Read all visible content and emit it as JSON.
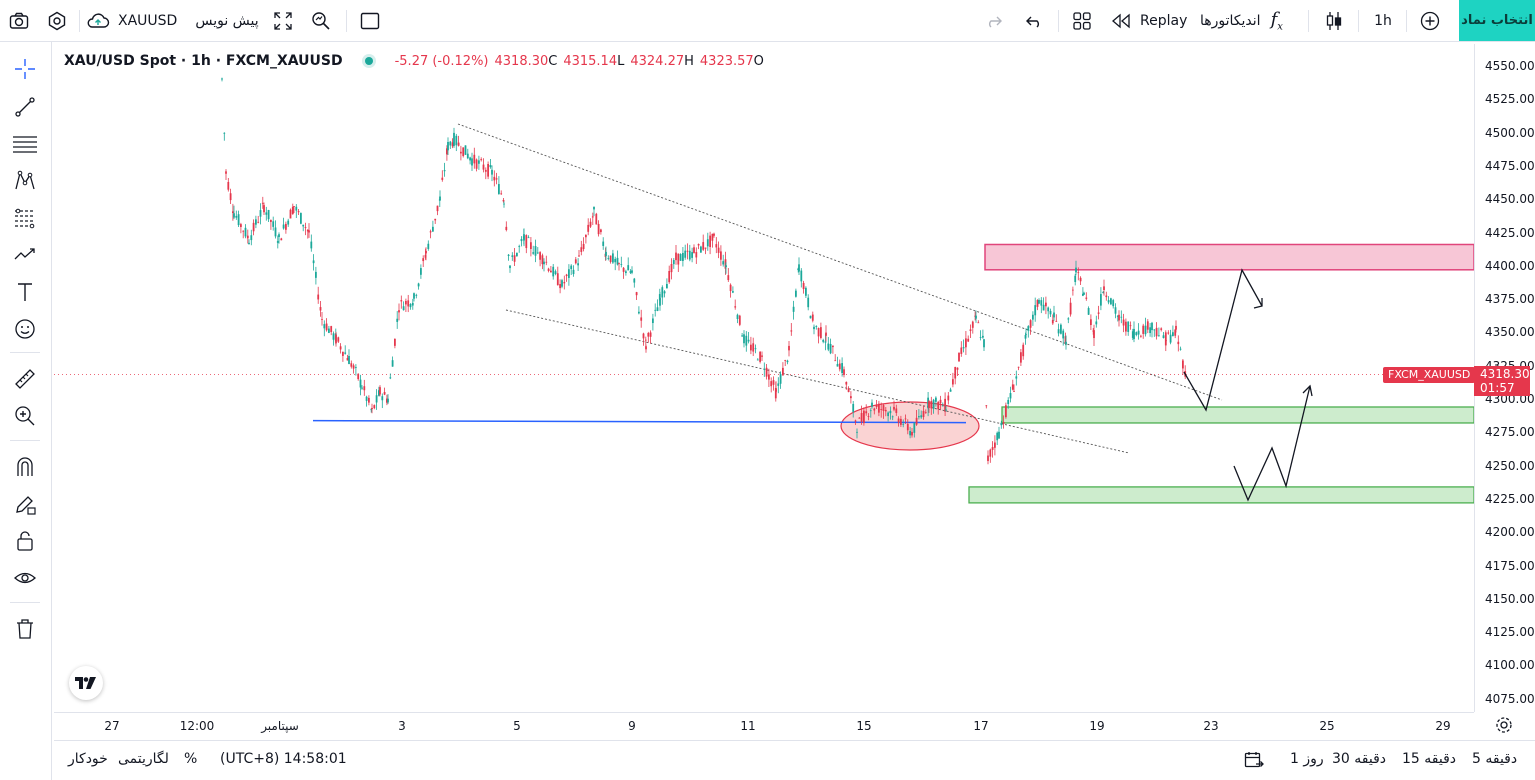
{
  "topbar": {
    "symbol": "XAUUSD",
    "publish_label": "پیش نویس",
    "replay_label": "Replay",
    "indicators_label": "اندیکاتورها",
    "interval_label": "1h",
    "pick_symbol_label": "انتخاب نماد"
  },
  "legend": {
    "title": "XAU/USD Spot · 1h · FXCM_XAUUSD",
    "change": "-5.27 (-0.12%)",
    "close": "4318.30",
    "close_key": "C",
    "low": "4315.14",
    "low_key": "L",
    "high": "4324.27",
    "high_key": "H",
    "open": "4323.57",
    "open_key": "O"
  },
  "price_axis": {
    "labels": [
      "4550.00",
      "4525.00",
      "4500.00",
      "4475.00",
      "4450.00",
      "4425.00",
      "4400.00",
      "4375.00",
      "4350.00",
      "4325.00",
      "4300.00",
      "4275.00",
      "4250.00",
      "4225.00",
      "4200.00",
      "4175.00",
      "4150.00",
      "4125.00",
      "4100.00",
      "4075.00"
    ],
    "current_price": "4318.30",
    "countdown": "01:57",
    "symbol_tag": "FXCM_XAUUSD"
  },
  "time_axis": {
    "labels": [
      "27",
      "12:00",
      "سپتامبر",
      "3",
      "5",
      "9",
      "11",
      "15",
      "17",
      "19",
      "23",
      "25",
      "29"
    ]
  },
  "bottombar": {
    "timezone": "(UTC+8) 14:58:01",
    "percent": "%",
    "log": "لگاریتمی",
    "auto": "خودکار",
    "ranges": [
      "5 دقیقه",
      "15 دقیقه",
      "30 دقیقه",
      "1 روز"
    ]
  },
  "colors": {
    "up": "#1ba89a",
    "down": "#e5374c",
    "resistance_zone": "#f7c6d6",
    "support_zone": "#cdeccd",
    "blue_line": "#2962ff",
    "accent": "#1ed3c2"
  },
  "chart_data": {
    "type": "candlestick",
    "symbol": "XAU/USD Spot",
    "interval": "1h",
    "ylim": [
      4062,
      4560
    ],
    "annotations": {
      "resistance_zone": [
        4397,
        4416
      ],
      "support_zone_1": [
        4282,
        4294
      ],
      "support_zone_2": [
        4222,
        4234
      ],
      "horizontal_line": 4283
    },
    "approx_close_path": [
      [
        "Aug 29",
        4530
      ],
      [
        "Aug 29",
        4470
      ],
      [
        "Aug 30",
        4440
      ],
      [
        "Aug 31",
        4420
      ],
      [
        "Sep 1",
        4450
      ],
      [
        "Sep 1",
        4380
      ],
      [
        "Sep 2",
        4330
      ],
      [
        "Sep 2",
        4290
      ],
      [
        "Sep 3",
        4310
      ],
      [
        "Sep 3",
        4370
      ],
      [
        "Sep 4",
        4430
      ],
      [
        "Sep 4",
        4500
      ],
      [
        "Sep 5",
        4470
      ],
      [
        "Sep 5",
        4400
      ],
      [
        "Sep 6",
        4420
      ],
      [
        "Sep 8",
        4380
      ],
      [
        "Sep 8",
        4440
      ],
      [
        "Sep 9",
        4380
      ],
      [
        "Sep 9",
        4340
      ],
      [
        "Sep 10",
        4410
      ],
      [
        "Sep 11",
        4380
      ],
      [
        "Sep 11",
        4320
      ],
      [
        "Sep 12",
        4400
      ],
      [
        "Sep 12",
        4340
      ],
      [
        "Sep 13",
        4320
      ],
      [
        "Sep 15",
        4290
      ],
      [
        "Sep 15",
        4300
      ],
      [
        "Sep 16",
        4275
      ],
      [
        "Sep 16",
        4300
      ],
      [
        "Sep 17",
        4350
      ],
      [
        "Sep 17",
        4255
      ],
      [
        "Sep 18",
        4300
      ],
      [
        "Sep 18",
        4370
      ],
      [
        "Sep 19",
        4395
      ],
      [
        "Sep 19",
        4350
      ],
      [
        "Sep 20",
        4375
      ],
      [
        "Sep 21",
        4340
      ],
      [
        "Sep 22",
        4318
      ]
    ]
  }
}
